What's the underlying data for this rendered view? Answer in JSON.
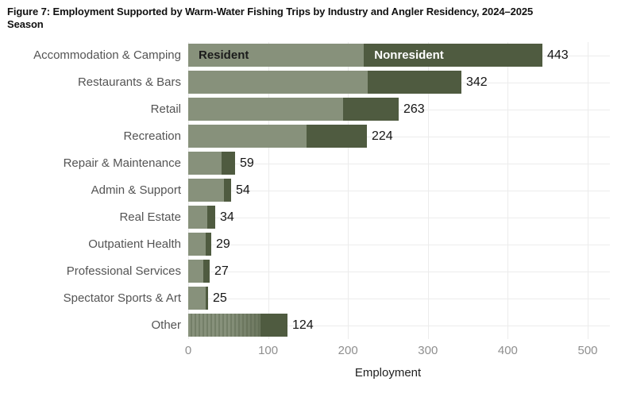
{
  "figure": {
    "title": "Figure 7: Employment Supported by Warm-Water Fishing Trips by Industry and Angler Residency, 2024–2025 Season",
    "xlabel": "Employment"
  },
  "legend": {
    "resident_label": "Resident",
    "nonresident_label": "Nonresident"
  },
  "colors": {
    "resident": "#87917b",
    "nonresident": "#4f5b40",
    "grid": "#ececec",
    "tick_text": "#8f8f8f",
    "category_text": "#545454",
    "value_text": "#141414"
  },
  "chart_data": {
    "type": "bar",
    "orientation": "horizontal",
    "stacked": true,
    "title": "Figure 7: Employment Supported by Warm-Water Fishing Trips by Industry and Angler Residency, 2024–2025 Season",
    "xlabel": "Employment",
    "xlim": [
      0,
      500
    ],
    "xticks": [
      0,
      100,
      200,
      300,
      400,
      500
    ],
    "grid": true,
    "legend_position": "inline-first-bar",
    "categories": [
      "Accommodation & Camping",
      "Restaurants & Bars",
      "Retail",
      "Recreation",
      "Repair & Maintenance",
      "Admin & Support",
      "Real Estate",
      "Outpatient Health",
      "Professional Services",
      "Spectator Sports & Art",
      "Other"
    ],
    "series": [
      {
        "name": "Resident",
        "values": [
          220,
          225,
          194,
          148,
          42,
          45,
          24,
          22,
          19,
          22,
          90
        ]
      },
      {
        "name": "Nonresident",
        "values": [
          223,
          117,
          69,
          76,
          17,
          9,
          10,
          7,
          8,
          3,
          34
        ]
      }
    ],
    "totals": [
      443,
      342,
      263,
      224,
      59,
      54,
      34,
      29,
      27,
      25,
      124
    ],
    "total_labels": [
      "443",
      "342",
      "263",
      "224",
      "59",
      "54",
      "34",
      "29",
      "27",
      "25",
      "124"
    ],
    "hatched_category": "Other"
  }
}
